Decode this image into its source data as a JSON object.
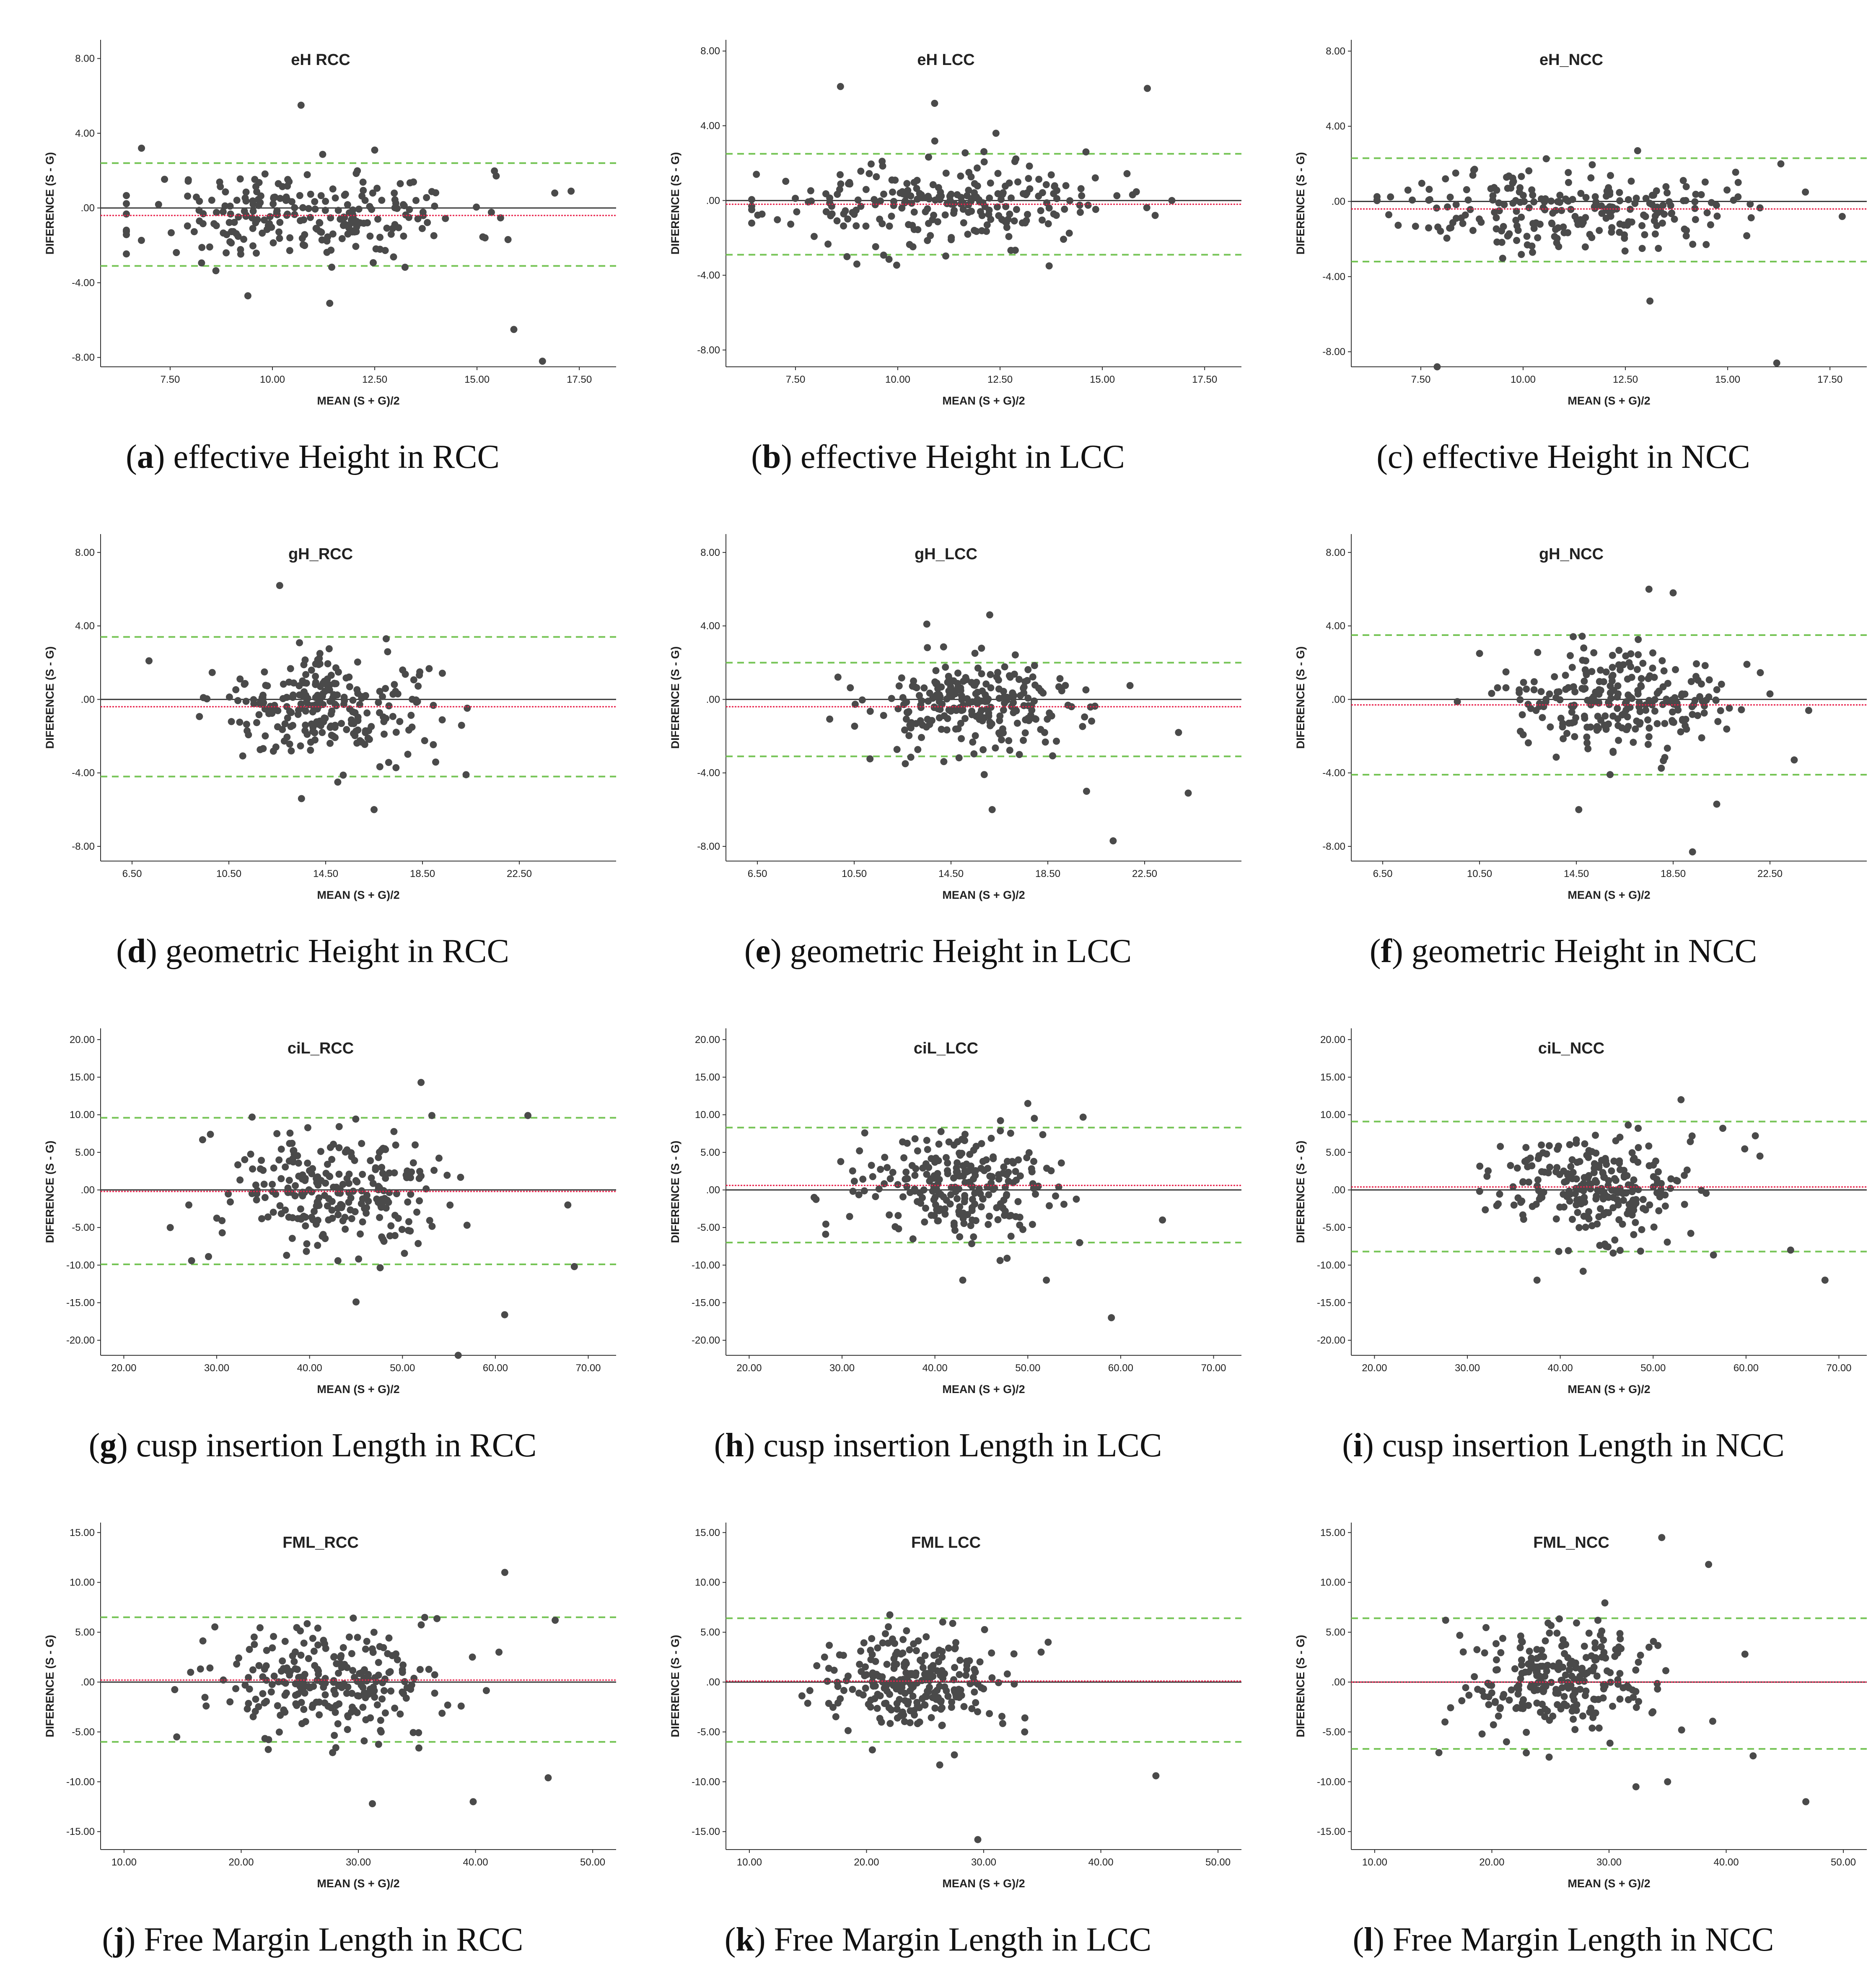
{
  "chart_data": [
    {
      "id": "a",
      "type": "scatter",
      "title": "eH  RCC",
      "letter": "a",
      "caption": "effective Height in RCC",
      "letter_bold": true,
      "xlabel": "MEAN (S + G)/2",
      "ylabel": "DIFERENCE (S - G)",
      "xlim": [
        5.8,
        18.4
      ],
      "ylim": [
        -8.5,
        9.0
      ],
      "xticks": [
        7.5,
        10,
        12.5,
        15,
        17.5
      ],
      "xtick_labels": [
        "7.50",
        "10.00",
        "12.50",
        "15.00",
        "17.50"
      ],
      "yticks": [
        -8,
        -4,
        0,
        4,
        8
      ],
      "ytick_labels": [
        "-8.00",
        "-4.00",
        ".00",
        "4.00",
        "8.00"
      ],
      "mean_diff": -0.4,
      "upper_loa": 2.4,
      "lower_loa": -3.1,
      "n_points": 240,
      "seed": 11,
      "x_center": 10.8,
      "x_spread": 2.0,
      "y_spread": 1.2,
      "outliers": [
        [
          10.7,
          5.5
        ],
        [
          15.9,
          -6.5
        ],
        [
          16.6,
          -8.2
        ],
        [
          9.4,
          -4.7
        ],
        [
          11.4,
          -5.1
        ],
        [
          6.8,
          3.2
        ],
        [
          12.5,
          3.1
        ],
        [
          16.9,
          0.8
        ],
        [
          17.3,
          0.9
        ]
      ]
    },
    {
      "id": "b",
      "type": "scatter",
      "title": "eH  LCC",
      "letter": "b",
      "caption": "effective Height in LCC",
      "letter_bold": true,
      "xlabel": "MEAN (S + G)/2",
      "ylabel": "DIFERENCE (S - G)",
      "xlim": [
        5.8,
        18.4
      ],
      "ylim": [
        -8.9,
        8.6
      ],
      "xticks": [
        7.5,
        10,
        12.5,
        15,
        17.5
      ],
      "xtick_labels": [
        "7.50",
        "10.00",
        "12.50",
        "15.00",
        "17.50"
      ],
      "yticks": [
        -8,
        -4,
        0,
        4,
        8
      ],
      "ytick_labels": [
        "-8.00",
        "-4.00",
        ".00",
        "4.00",
        "8.00"
      ],
      "mean_diff": -0.2,
      "upper_loa": 2.5,
      "lower_loa": -2.9,
      "n_points": 240,
      "seed": 23,
      "x_center": 11.0,
      "x_spread": 2.1,
      "y_spread": 1.1,
      "outliers": [
        [
          8.6,
          6.1
        ],
        [
          10.9,
          5.2
        ],
        [
          16.1,
          6.0
        ],
        [
          12.4,
          3.6
        ],
        [
          14.6,
          2.6
        ],
        [
          16.7,
          0.0
        ],
        [
          9.0,
          -3.4
        ],
        [
          13.7,
          -3.5
        ]
      ]
    },
    {
      "id": "c",
      "type": "scatter",
      "title": "eH_NCC",
      "letter": "c",
      "caption": "effective Height in NCC",
      "letter_bold": false,
      "xlabel": "MEAN (S + G)/2",
      "ylabel": "DIFERENCE (S - G)",
      "xlim": [
        5.8,
        18.4
      ],
      "ylim": [
        -8.8,
        8.6
      ],
      "xticks": [
        7.5,
        10,
        12.5,
        15,
        17.5
      ],
      "xtick_labels": [
        "7.50",
        "10.00",
        "12.50",
        "15.00",
        "17.50"
      ],
      "yticks": [
        -8,
        -4,
        0,
        4,
        8
      ],
      "ytick_labels": [
        "-8.00",
        "-4.00",
        ".00",
        "4.00",
        "8.00"
      ],
      "mean_diff": -0.4,
      "upper_loa": 2.3,
      "lower_loa": -3.2,
      "n_points": 240,
      "seed": 37,
      "x_center": 11.0,
      "x_spread": 2.0,
      "y_spread": 1.1,
      "outliers": [
        [
          13.1,
          -5.3
        ],
        [
          16.2,
          -8.6
        ],
        [
          16.3,
          2.0
        ],
        [
          17.8,
          -0.8
        ],
        [
          16.9,
          0.5
        ],
        [
          12.8,
          2.7
        ],
        [
          7.9,
          -8.8
        ]
      ]
    },
    {
      "id": "d",
      "type": "scatter",
      "title": "gH_RCC",
      "letter": "d",
      "caption": "geometric Height in RCC",
      "letter_bold": true,
      "xlabel": "MEAN (S + G)/2",
      "ylabel": "DIFERENCE (S - G)",
      "xlim": [
        5.2,
        26.5
      ],
      "ylim": [
        -8.8,
        9.0
      ],
      "xticks": [
        6.5,
        10.5,
        14.5,
        18.5,
        22.5
      ],
      "xtick_labels": [
        "6.50",
        "10.50",
        "14.50",
        "18.50",
        "22.50"
      ],
      "yticks": [
        -8,
        -4,
        0,
        4,
        8
      ],
      "ytick_labels": [
        "-8.00",
        "-4.00",
        ".00",
        "4.00",
        "8.00"
      ],
      "mean_diff": -0.4,
      "upper_loa": 3.4,
      "lower_loa": -4.2,
      "n_points": 250,
      "seed": 41,
      "x_center": 14.6,
      "x_spread": 2.2,
      "y_spread": 1.3,
      "outliers": [
        [
          12.6,
          6.2
        ],
        [
          7.2,
          2.1
        ],
        [
          20.3,
          -4.1
        ],
        [
          16.5,
          -6.0
        ],
        [
          13.5,
          -5.4
        ],
        [
          15.0,
          -4.5
        ],
        [
          17.0,
          3.3
        ]
      ]
    },
    {
      "id": "e",
      "type": "scatter",
      "title": "gH_LCC",
      "letter": "e",
      "caption": "geometric Height in LCC",
      "letter_bold": true,
      "xlabel": "MEAN (S + G)/2",
      "ylabel": "DIFERENCE (S - G)",
      "xlim": [
        5.2,
        26.5
      ],
      "ylim": [
        -8.8,
        9.0
      ],
      "xticks": [
        6.5,
        10.5,
        14.5,
        18.5,
        22.5
      ],
      "xtick_labels": [
        "6.50",
        "10.50",
        "14.50",
        "18.50",
        "22.50"
      ],
      "yticks": [
        -8,
        -4,
        0,
        4,
        8
      ],
      "ytick_labels": [
        "-8.00",
        "-4.00",
        ".00",
        "4.00",
        "8.00"
      ],
      "mean_diff": -0.4,
      "upper_loa": 2.0,
      "lower_loa": -3.1,
      "n_points": 250,
      "seed": 53,
      "x_center": 15.6,
      "x_spread": 2.3,
      "y_spread": 1.3,
      "outliers": [
        [
          21.2,
          -7.7
        ],
        [
          24.3,
          -5.1
        ],
        [
          16.2,
          -6.0
        ],
        [
          20.1,
          -5.0
        ],
        [
          16.1,
          4.6
        ],
        [
          13.5,
          4.1
        ],
        [
          23.9,
          -1.8
        ]
      ]
    },
    {
      "id": "f",
      "type": "scatter",
      "title": "gH_NCC",
      "letter": "f",
      "caption": "geometric Height in NCC",
      "letter_bold": true,
      "xlabel": "MEAN (S + G)/2",
      "ylabel": "DIFERENCE (S - G)",
      "xlim": [
        5.2,
        26.5
      ],
      "ylim": [
        -8.8,
        9.0
      ],
      "xticks": [
        6.5,
        10.5,
        14.5,
        18.5,
        22.5
      ],
      "xtick_labels": [
        "6.50",
        "10.50",
        "14.50",
        "18.50",
        "22.50"
      ],
      "yticks": [
        -8,
        -4,
        0,
        4,
        8
      ],
      "ytick_labels": [
        "-8.00",
        "-4.00",
        ".00",
        "4.00",
        "8.00"
      ],
      "mean_diff": -0.3,
      "upper_loa": 3.5,
      "lower_loa": -4.1,
      "n_points": 250,
      "seed": 67,
      "x_center": 16.0,
      "x_spread": 2.2,
      "y_spread": 1.4,
      "outliers": [
        [
          17.5,
          6.0
        ],
        [
          18.5,
          5.8
        ],
        [
          19.3,
          -8.3
        ],
        [
          20.3,
          -5.7
        ],
        [
          24.1,
          -0.6
        ],
        [
          22.5,
          0.3
        ],
        [
          14.6,
          -6.0
        ],
        [
          10.5,
          2.5
        ]
      ]
    },
    {
      "id": "g",
      "type": "scatter",
      "title": "ciL_RCC",
      "letter": "g",
      "caption": "cusp insertion Length in RCC",
      "letter_bold": true,
      "xlabel": "MEAN (S + G)/2",
      "ylabel": "DIFERENCE (S - G)",
      "xlim": [
        17.5,
        73.0
      ],
      "ylim": [
        -22.0,
        21.5
      ],
      "xticks": [
        20,
        30,
        40,
        50,
        60,
        70
      ],
      "xtick_labels": [
        "20.00",
        "30.00",
        "40.00",
        "50.00",
        "60.00",
        "70.00"
      ],
      "yticks": [
        -20,
        -15,
        -10,
        -5,
        0,
        5,
        10,
        15,
        20
      ],
      "ytick_labels": [
        "-20.00",
        "-15.00",
        "-10.00",
        "-5.00",
        ".00",
        "5.00",
        "10.00",
        "15.00",
        "20.00"
      ],
      "mean_diff": -0.2,
      "upper_loa": 9.6,
      "lower_loa": -9.9,
      "n_points": 250,
      "seed": 71,
      "x_center": 43.0,
      "x_spread": 6.5,
      "y_spread": 4.2,
      "outliers": [
        [
          52.0,
          14.3
        ],
        [
          63.5,
          9.9
        ],
        [
          61.0,
          -16.6
        ],
        [
          68.5,
          -10.2
        ],
        [
          67.8,
          -2.0
        ],
        [
          25.0,
          -5.0
        ],
        [
          45.0,
          -14.9
        ],
        [
          56.0,
          -22.0
        ],
        [
          27.0,
          -2.0
        ]
      ]
    },
    {
      "id": "h",
      "type": "scatter",
      "title": "ciL_LCC",
      "letter": "h",
      "caption": "cusp insertion Length in LCC",
      "letter_bold": true,
      "xlabel": "MEAN (S + G)/2",
      "ylabel": "DIFERENCE (S - G)",
      "xlim": [
        17.5,
        73.0
      ],
      "ylim": [
        -22.0,
        21.5
      ],
      "xticks": [
        20,
        30,
        40,
        50,
        60,
        70
      ],
      "xtick_labels": [
        "20.00",
        "30.00",
        "40.00",
        "50.00",
        "60.00",
        "70.00"
      ],
      "yticks": [
        -20,
        -15,
        -10,
        -5,
        0,
        5,
        10,
        15,
        20
      ],
      "ytick_labels": [
        "-20.00",
        "-15.00",
        "-10.00",
        "-5.00",
        ".00",
        "5.00",
        "10.00",
        "15.00",
        "20.00"
      ],
      "mean_diff": 0.6,
      "upper_loa": 8.3,
      "lower_loa": -7.0,
      "n_points": 250,
      "seed": 83,
      "x_center": 42.5,
      "x_spread": 5.5,
      "y_spread": 3.6,
      "outliers": [
        [
          59.0,
          -17.0
        ],
        [
          64.5,
          -4.0
        ],
        [
          52.0,
          -12.0
        ],
        [
          43.0,
          -12.0
        ],
        [
          50.0,
          11.5
        ],
        [
          27.0,
          -1.0
        ]
      ]
    },
    {
      "id": "i",
      "type": "scatter",
      "title": "ciL_NCC",
      "letter": "i",
      "caption": "cusp insertion Length in NCC",
      "letter_bold": true,
      "xlabel": "MEAN (S + G)/2",
      "ylabel": "DIFERENCE (S - G)",
      "xlim": [
        17.5,
        73.0
      ],
      "ylim": [
        -22.0,
        21.5
      ],
      "xticks": [
        20,
        30,
        40,
        50,
        60,
        70
      ],
      "xtick_labels": [
        "20.00",
        "30.00",
        "40.00",
        "50.00",
        "60.00",
        "70.00"
      ],
      "yticks": [
        -20,
        -15,
        -10,
        -5,
        0,
        5,
        10,
        15,
        20
      ],
      "ytick_labels": [
        "-20.00",
        "-15.00",
        "-10.00",
        "-5.00",
        ".00",
        "5.00",
        "10.00",
        "15.00",
        "20.00"
      ],
      "mean_diff": 0.4,
      "upper_loa": 9.1,
      "lower_loa": -8.2,
      "n_points": 250,
      "seed": 97,
      "x_center": 43.0,
      "x_spread": 5.5,
      "y_spread": 3.8,
      "outliers": [
        [
          68.5,
          -12.0
        ],
        [
          64.8,
          -8.0
        ],
        [
          61.5,
          4.5
        ],
        [
          57.5,
          8.2
        ],
        [
          53.0,
          12.0
        ],
        [
          37.5,
          -12.0
        ],
        [
          61.0,
          7.2
        ]
      ]
    },
    {
      "id": "j",
      "type": "scatter",
      "title": "FML_RCC",
      "letter": "j",
      "caption": "Free Margin Length in RCC",
      "letter_bold": true,
      "xlabel": "MEAN (S + G)/2",
      "ylabel": "DIFERENCE (S - G)",
      "xlim": [
        8.0,
        52.0
      ],
      "ylim": [
        -16.8,
        16.0
      ],
      "xticks": [
        10,
        20,
        30,
        40,
        50
      ],
      "xtick_labels": [
        "10.00",
        "20.00",
        "30.00",
        "40.00",
        "50.00"
      ],
      "yticks": [
        -15,
        -10,
        -5,
        0,
        5,
        10,
        15
      ],
      "ytick_labels": [
        "-15.00",
        "-10.00",
        "-5.00",
        ".00",
        "5.00",
        "10.00",
        "15.00"
      ],
      "mean_diff": 0.2,
      "upper_loa": 6.5,
      "lower_loa": -6.0,
      "n_points": 250,
      "seed": 101,
      "x_center": 27.5,
      "x_spread": 4.8,
      "y_spread": 2.7,
      "outliers": [
        [
          42.5,
          11.0
        ],
        [
          46.8,
          6.2
        ],
        [
          46.2,
          -9.6
        ],
        [
          39.8,
          -12.0
        ],
        [
          31.2,
          -12.2
        ],
        [
          14.5,
          -5.5
        ],
        [
          42.0,
          3.0
        ]
      ]
    },
    {
      "id": "k",
      "type": "scatter",
      "title": "FML  LCC",
      "letter": "k",
      "caption": "Free Margin Length in LCC",
      "letter_bold": true,
      "xlabel": "MEAN (S + G)/2",
      "ylabel": "DIFERENCE (S - G)",
      "xlim": [
        8.0,
        52.0
      ],
      "ylim": [
        -16.8,
        16.0
      ],
      "xticks": [
        10,
        20,
        30,
        40,
        50
      ],
      "xtick_labels": [
        "10.00",
        "20.00",
        "30.00",
        "40.00",
        "50.00"
      ],
      "yticks": [
        -15,
        -10,
        -5,
        0,
        5,
        10,
        15
      ],
      "ytick_labels": [
        "-15.00",
        "-10.00",
        "-5.00",
        ".00",
        "5.00",
        "10.00",
        "15.00"
      ],
      "mean_diff": 0.1,
      "upper_loa": 6.4,
      "lower_loa": -6.0,
      "n_points": 250,
      "seed": 113,
      "x_center": 24.0,
      "x_spread": 3.8,
      "y_spread": 2.4,
      "outliers": [
        [
          44.7,
          -9.4
        ],
        [
          29.5,
          -15.8
        ],
        [
          35.5,
          4.0
        ],
        [
          33.5,
          -5.0
        ],
        [
          20.5,
          -6.8
        ],
        [
          27.5,
          -7.3
        ]
      ]
    },
    {
      "id": "l",
      "type": "scatter",
      "title": "FML_NCC",
      "letter": "l",
      "caption": "Free Margin Length in NCC",
      "letter_bold": true,
      "xlabel": "MEAN (S + G)/2",
      "ylabel": "DIFERENCE (S - G)",
      "xlim": [
        8.0,
        52.0
      ],
      "ylim": [
        -16.8,
        16.0
      ],
      "xticks": [
        10,
        20,
        30,
        40,
        50
      ],
      "xtick_labels": [
        "10.00",
        "20.00",
        "30.00",
        "40.00",
        "50.00"
      ],
      "yticks": [
        -15,
        -10,
        -5,
        0,
        5,
        10,
        15
      ],
      "ytick_labels": [
        "-15.00",
        "-10.00",
        "-5.00",
        ".00",
        "5.00",
        "10.00",
        "15.00"
      ],
      "mean_diff": 0.0,
      "upper_loa": 6.4,
      "lower_loa": -6.7,
      "n_points": 250,
      "seed": 127,
      "x_center": 26.0,
      "x_spread": 4.2,
      "y_spread": 2.8,
      "outliers": [
        [
          34.5,
          14.5
        ],
        [
          38.5,
          11.8
        ],
        [
          46.8,
          -12.0
        ],
        [
          42.3,
          -7.4
        ],
        [
          32.3,
          -10.5
        ],
        [
          35.0,
          -10.0
        ],
        [
          16.0,
          -4.0
        ],
        [
          41.6,
          2.8
        ]
      ]
    }
  ]
}
